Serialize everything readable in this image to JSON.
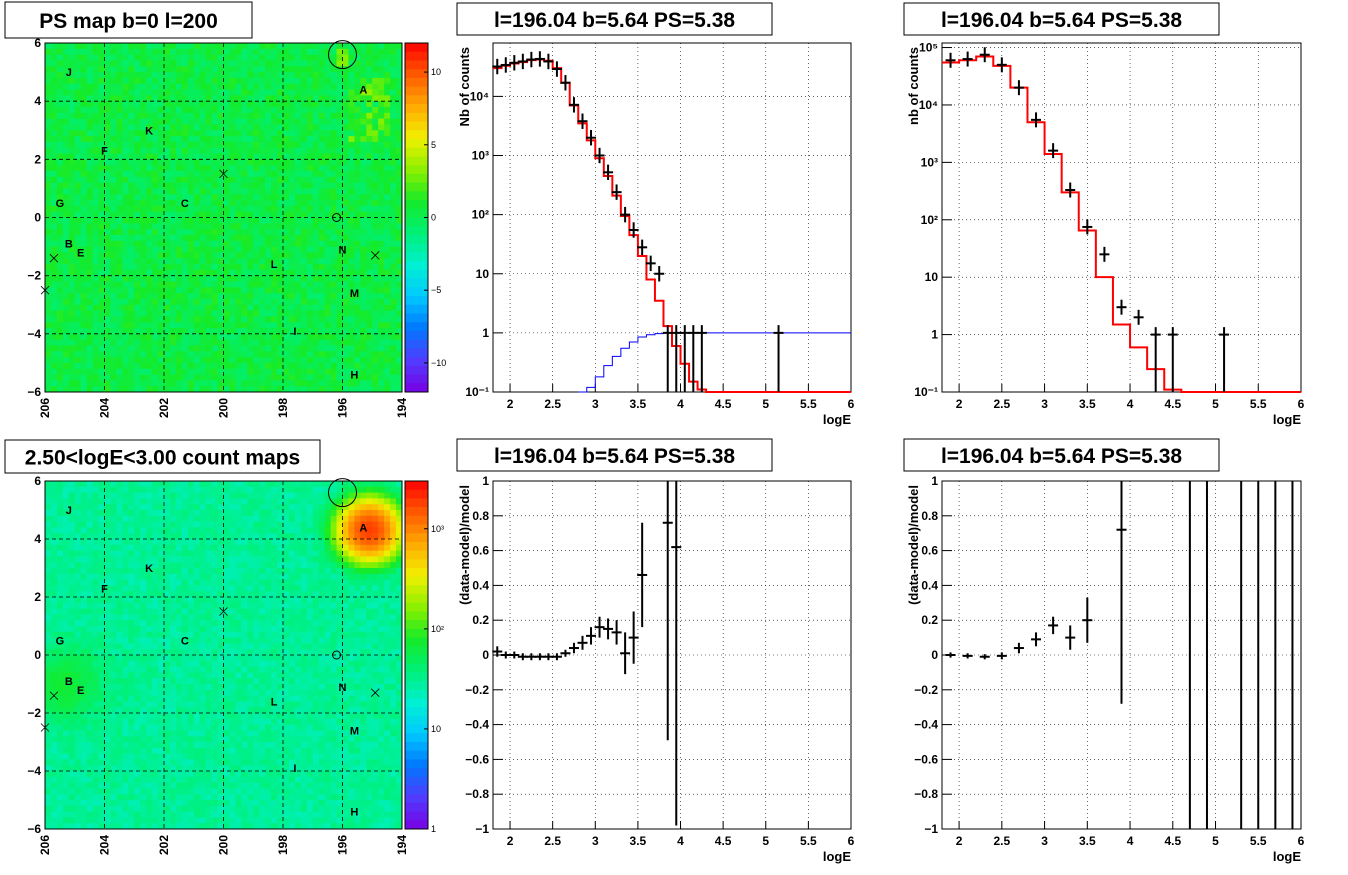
{
  "source_labels": [
    {
      "text": "J",
      "l": 205.2,
      "b": 5.0
    },
    {
      "text": "A",
      "l": 195.3,
      "b": 4.4
    },
    {
      "text": "K",
      "l": 202.5,
      "b": 3.0
    },
    {
      "text": "F",
      "l": 204.0,
      "b": 2.3
    },
    {
      "text": "G",
      "l": 205.5,
      "b": 0.5
    },
    {
      "text": "C",
      "l": 201.3,
      "b": 0.5
    },
    {
      "text": "B",
      "l": 205.2,
      "b": -0.9
    },
    {
      "text": "E",
      "l": 204.8,
      "b": -1.2
    },
    {
      "text": "N",
      "l": 196.0,
      "b": -1.1
    },
    {
      "text": "L",
      "l": 198.3,
      "b": -1.6
    },
    {
      "text": "M",
      "l": 195.6,
      "b": -2.6
    },
    {
      "text": "I",
      "l": 197.6,
      "b": -3.9
    },
    {
      "text": "H",
      "l": 195.6,
      "b": -5.4
    }
  ],
  "cross_markers": [
    {
      "l": 200.0,
      "b": 1.5
    },
    {
      "l": 205.7,
      "b": -1.4
    },
    {
      "l": 206.0,
      "b": -2.5
    },
    {
      "l": 194.9,
      "b": -1.3
    }
  ],
  "big_circle": {
    "l": 196.0,
    "b": 5.6
  },
  "small_circle": {
    "l": 196.2,
    "b": 0.0
  },
  "chart_data": [
    {
      "id": "ps-map",
      "type": "heatmap",
      "title": "PS map b=0 l=200",
      "xlim": [
        206,
        194
      ],
      "ylim": [
        -6,
        6
      ],
      "xticks": [
        "206",
        "204",
        "202",
        "200",
        "198",
        "196",
        "194"
      ],
      "yticks": [
        "6",
        "4",
        "2",
        "0",
        "−2",
        "−4",
        "−6"
      ],
      "colorbar": {
        "range": [
          -12,
          12
        ],
        "ticks": [
          "10",
          "5",
          "0",
          "−5",
          "−10"
        ],
        "tick_values": [
          10,
          5,
          0,
          -5,
          -10
        ]
      },
      "grid": true
    },
    {
      "id": "spectrum-1",
      "type": "line",
      "title": "l=196.04 b=5.64 PS=5.38",
      "xlabel": "logE",
      "ylabel": "Nb of counts",
      "xlim": [
        1.8,
        6
      ],
      "ylim": [
        0.1,
        80000
      ],
      "yscale": "log",
      "xticks": [
        "2",
        "2.5",
        "3",
        "3.5",
        "4",
        "4.5",
        "5",
        "5.5",
        "6"
      ],
      "yticks": [
        "10⁻¹",
        "1",
        "10",
        "10²",
        "10³",
        "10⁴"
      ],
      "ytick_values": [
        0.1,
        1,
        10,
        100,
        1000,
        10000
      ],
      "grid": true,
      "series": [
        {
          "color": "#ff0000",
          "style": "step",
          "x": [
            1.8,
            1.9,
            2.0,
            2.1,
            2.2,
            2.3,
            2.4,
            2.5,
            2.6,
            2.7,
            2.8,
            2.9,
            3.0,
            3.1,
            3.2,
            3.3,
            3.4,
            3.5,
            3.6,
            3.7,
            3.8,
            3.9,
            4.0,
            4.1,
            4.2,
            4.3,
            4.4,
            6.0
          ],
          "y": [
            30000,
            33000,
            36000,
            38000,
            41000,
            42000,
            40000,
            30000,
            17000,
            7000,
            3500,
            1800,
            900,
            450,
            210,
            95,
            45,
            20,
            8,
            3.5,
            1.3,
            0.6,
            0.3,
            0.15,
            0.11,
            0.1,
            0.1,
            0.1
          ]
        },
        {
          "color": "#0000ff",
          "style": "step",
          "x": [
            2.8,
            2.9,
            3.0,
            3.1,
            3.2,
            3.3,
            3.4,
            3.5,
            3.6,
            3.7,
            3.8,
            4.0,
            6.0
          ],
          "y": [
            0.1,
            0.12,
            0.18,
            0.28,
            0.4,
            0.55,
            0.7,
            0.85,
            0.93,
            0.97,
            1.0,
            1.0,
            1.0
          ]
        },
        {
          "color": "#000000",
          "style": "errorbar",
          "x": [
            1.85,
            1.95,
            2.05,
            2.15,
            2.25,
            2.35,
            2.45,
            2.55,
            2.65,
            2.75,
            2.85,
            2.95,
            3.05,
            3.15,
            3.25,
            3.35,
            3.45,
            3.55,
            3.65,
            3.75,
            3.85,
            3.95,
            4.05,
            4.15,
            4.25,
            5.15
          ],
          "y": [
            32000,
            34000,
            37000,
            39000,
            42000,
            43000,
            39000,
            29000,
            17000,
            7200,
            3800,
            2000,
            1000,
            520,
            240,
            100,
            55,
            28,
            15,
            10,
            1,
            1,
            1,
            1,
            1,
            1
          ]
        }
      ]
    },
    {
      "id": "spectrum-2",
      "type": "line",
      "title": "l=196.04 b=5.64 PS=5.38",
      "xlabel": "logE",
      "ylabel": "nb of counts",
      "xlim": [
        1.8,
        6
      ],
      "ylim": [
        0.1,
        120000
      ],
      "yscale": "log",
      "xticks": [
        "2",
        "2.5",
        "3",
        "3.5",
        "4",
        "4.5",
        "5",
        "5.5",
        "6"
      ],
      "yticks": [
        "10⁻¹",
        "1",
        "10",
        "10²",
        "10³",
        "10⁴",
        "10⁵"
      ],
      "ytick_values": [
        0.1,
        1,
        10,
        100,
        1000,
        10000,
        100000
      ],
      "grid": true,
      "series": [
        {
          "color": "#ff0000",
          "style": "step",
          "x": [
            1.8,
            2.0,
            2.2,
            2.4,
            2.6,
            2.8,
            3.0,
            3.2,
            3.4,
            3.6,
            3.8,
            4.0,
            4.2,
            4.4,
            4.6,
            6.0
          ],
          "y": [
            55000,
            60000,
            70000,
            48000,
            20000,
            5000,
            1400,
            300,
            65,
            10,
            1.5,
            0.6,
            0.25,
            0.11,
            0.1,
            0.1
          ]
        },
        {
          "color": "#000000",
          "style": "errorbar",
          "x": [
            1.9,
            2.1,
            2.3,
            2.5,
            2.7,
            2.9,
            3.1,
            3.3,
            3.5,
            3.7,
            3.9,
            4.1,
            4.3,
            4.5,
            5.1
          ],
          "y": [
            60000,
            63000,
            75000,
            50000,
            20000,
            5500,
            1600,
            330,
            75,
            25,
            3,
            2,
            1,
            1,
            1
          ]
        }
      ]
    },
    {
      "id": "count-map",
      "type": "heatmap",
      "title": "2.50<logE<3.00 count maps",
      "xlim": [
        206,
        194
      ],
      "ylim": [
        -6,
        6
      ],
      "xticks": [
        "206",
        "204",
        "202",
        "200",
        "198",
        "196",
        "194"
      ],
      "yticks": [
        "6",
        "4",
        "2",
        "0",
        "−2",
        "−4",
        "−6"
      ],
      "colorbar": {
        "scale": "log",
        "range": [
          1,
          3000
        ],
        "ticks": [
          "10³",
          "10²",
          "10",
          "1"
        ],
        "tick_values": [
          1000,
          100,
          10,
          1
        ]
      },
      "grid": true
    },
    {
      "id": "residual-1",
      "type": "scatter",
      "title": "l=196.04 b=5.64 PS=5.38",
      "xlabel": "logE",
      "ylabel": "(data-model)/model",
      "xlim": [
        1.8,
        6
      ],
      "ylim": [
        -1,
        1
      ],
      "xticks": [
        "2",
        "2.5",
        "3",
        "3.5",
        "4",
        "4.5",
        "5",
        "5.5",
        "6"
      ],
      "yticks": [
        "1",
        "0.8",
        "0.6",
        "0.4",
        "0.2",
        "0",
        "−0.2",
        "−0.4",
        "−0.6",
        "−0.8",
        "−1"
      ],
      "ytick_values": [
        1,
        0.8,
        0.6,
        0.4,
        0.2,
        0,
        -0.2,
        -0.4,
        -0.6,
        -0.8,
        -1
      ],
      "grid": true,
      "series": [
        {
          "color": "#000000",
          "style": "errorbar",
          "x": [
            1.85,
            1.95,
            2.05,
            2.15,
            2.25,
            2.35,
            2.45,
            2.55,
            2.65,
            2.75,
            2.85,
            2.95,
            3.05,
            3.15,
            3.25,
            3.35,
            3.45,
            3.55,
            3.85,
            3.95
          ],
          "y": [
            0.02,
            0.0,
            0.0,
            -0.01,
            -0.01,
            -0.01,
            -0.01,
            -0.01,
            0.01,
            0.04,
            0.07,
            0.11,
            0.16,
            0.15,
            0.13,
            0.01,
            0.1,
            0.46,
            0.76,
            0.62
          ],
          "err": [
            0.03,
            0.02,
            0.02,
            0.02,
            0.02,
            0.02,
            0.02,
            0.02,
            0.02,
            0.03,
            0.04,
            0.05,
            0.06,
            0.06,
            0.07,
            0.12,
            0.15,
            0.3,
            1.25,
            1.6
          ]
        }
      ]
    },
    {
      "id": "residual-2",
      "type": "scatter",
      "title": "l=196.04 b=5.64 PS=5.38",
      "xlabel": "logE",
      "ylabel": "(data-model)/model",
      "xlim": [
        1.8,
        6
      ],
      "ylim": [
        -1,
        1
      ],
      "xticks": [
        "2",
        "2.5",
        "3",
        "3.5",
        "4",
        "4.5",
        "5",
        "5.5",
        "6"
      ],
      "yticks": [
        "1",
        "0.8",
        "0.6",
        "0.4",
        "0.2",
        "0",
        "−0.2",
        "−0.4",
        "−0.6",
        "−0.8",
        "−1"
      ],
      "ytick_values": [
        1,
        0.8,
        0.6,
        0.4,
        0.2,
        0,
        -0.2,
        -0.4,
        -0.6,
        -0.8,
        -1
      ],
      "grid": true,
      "series": [
        {
          "color": "#000000",
          "style": "errorbar",
          "x": [
            1.9,
            2.1,
            2.3,
            2.5,
            2.7,
            2.9,
            3.1,
            3.3,
            3.5,
            3.9
          ],
          "y": [
            0.0,
            -0.005,
            -0.01,
            -0.005,
            0.04,
            0.09,
            0.17,
            0.1,
            0.2,
            0.72
          ],
          "err": [
            0.015,
            0.015,
            0.015,
            0.02,
            0.03,
            0.04,
            0.05,
            0.07,
            0.13,
            1.0
          ]
        },
        {
          "color": "#000000",
          "style": "vline",
          "x": [
            4.7,
            4.9,
            5.3,
            5.5,
            5.7,
            5.9
          ]
        }
      ]
    }
  ]
}
